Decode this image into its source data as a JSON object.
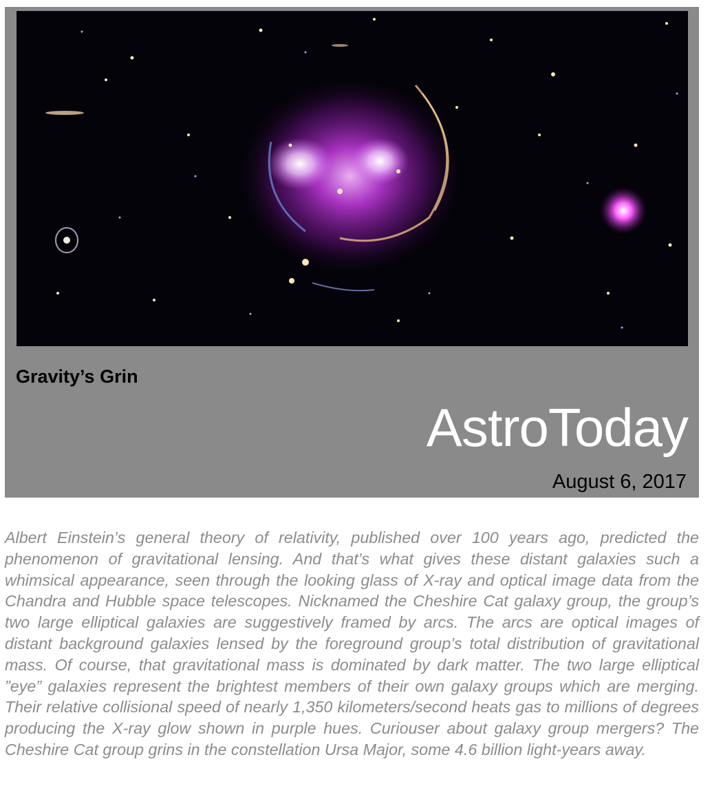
{
  "header": {
    "subtitle": "Gravity’s Grin",
    "brand": "AstroToday",
    "date": "August 6, 2017"
  },
  "photo": {
    "subject": "Cheshire Cat galaxy group"
  },
  "article": {
    "text": "Albert Einstein’s general theory of relativity, published over 100 years ago, predicted the phenomenon of gravitational lensing. And that’s what gives these distant galaxies such a whimsical appearance, seen through the looking glass of X-ray and optical image data from the Chandra and Hubble space telescopes. Nicknamed the Cheshire Cat galaxy group, the group’s two large elliptical galaxies are suggestively framed by arcs. The arcs are optical images of distant background galaxies lensed by the foreground group’s total distribution of gravitational mass. Of course, that gravitational mass is dominated by dark matter. The two large elliptical ”eye” galaxies represent the brightest members of their own galaxy groups which are merging. Their relative collisional speed of nearly 1,350 kilometers/second heats gas to millions of degrees producing the X-ray glow shown in purple hues. Curiouser about galaxy group mergers? The Cheshire Cat group grins in the constellation Ursa Major, some 4.6 billion light-years away."
  },
  "colors": {
    "panel": "#8a8a8a",
    "article_text": "#8c8c8c",
    "xray_glow": "#c43be0"
  }
}
